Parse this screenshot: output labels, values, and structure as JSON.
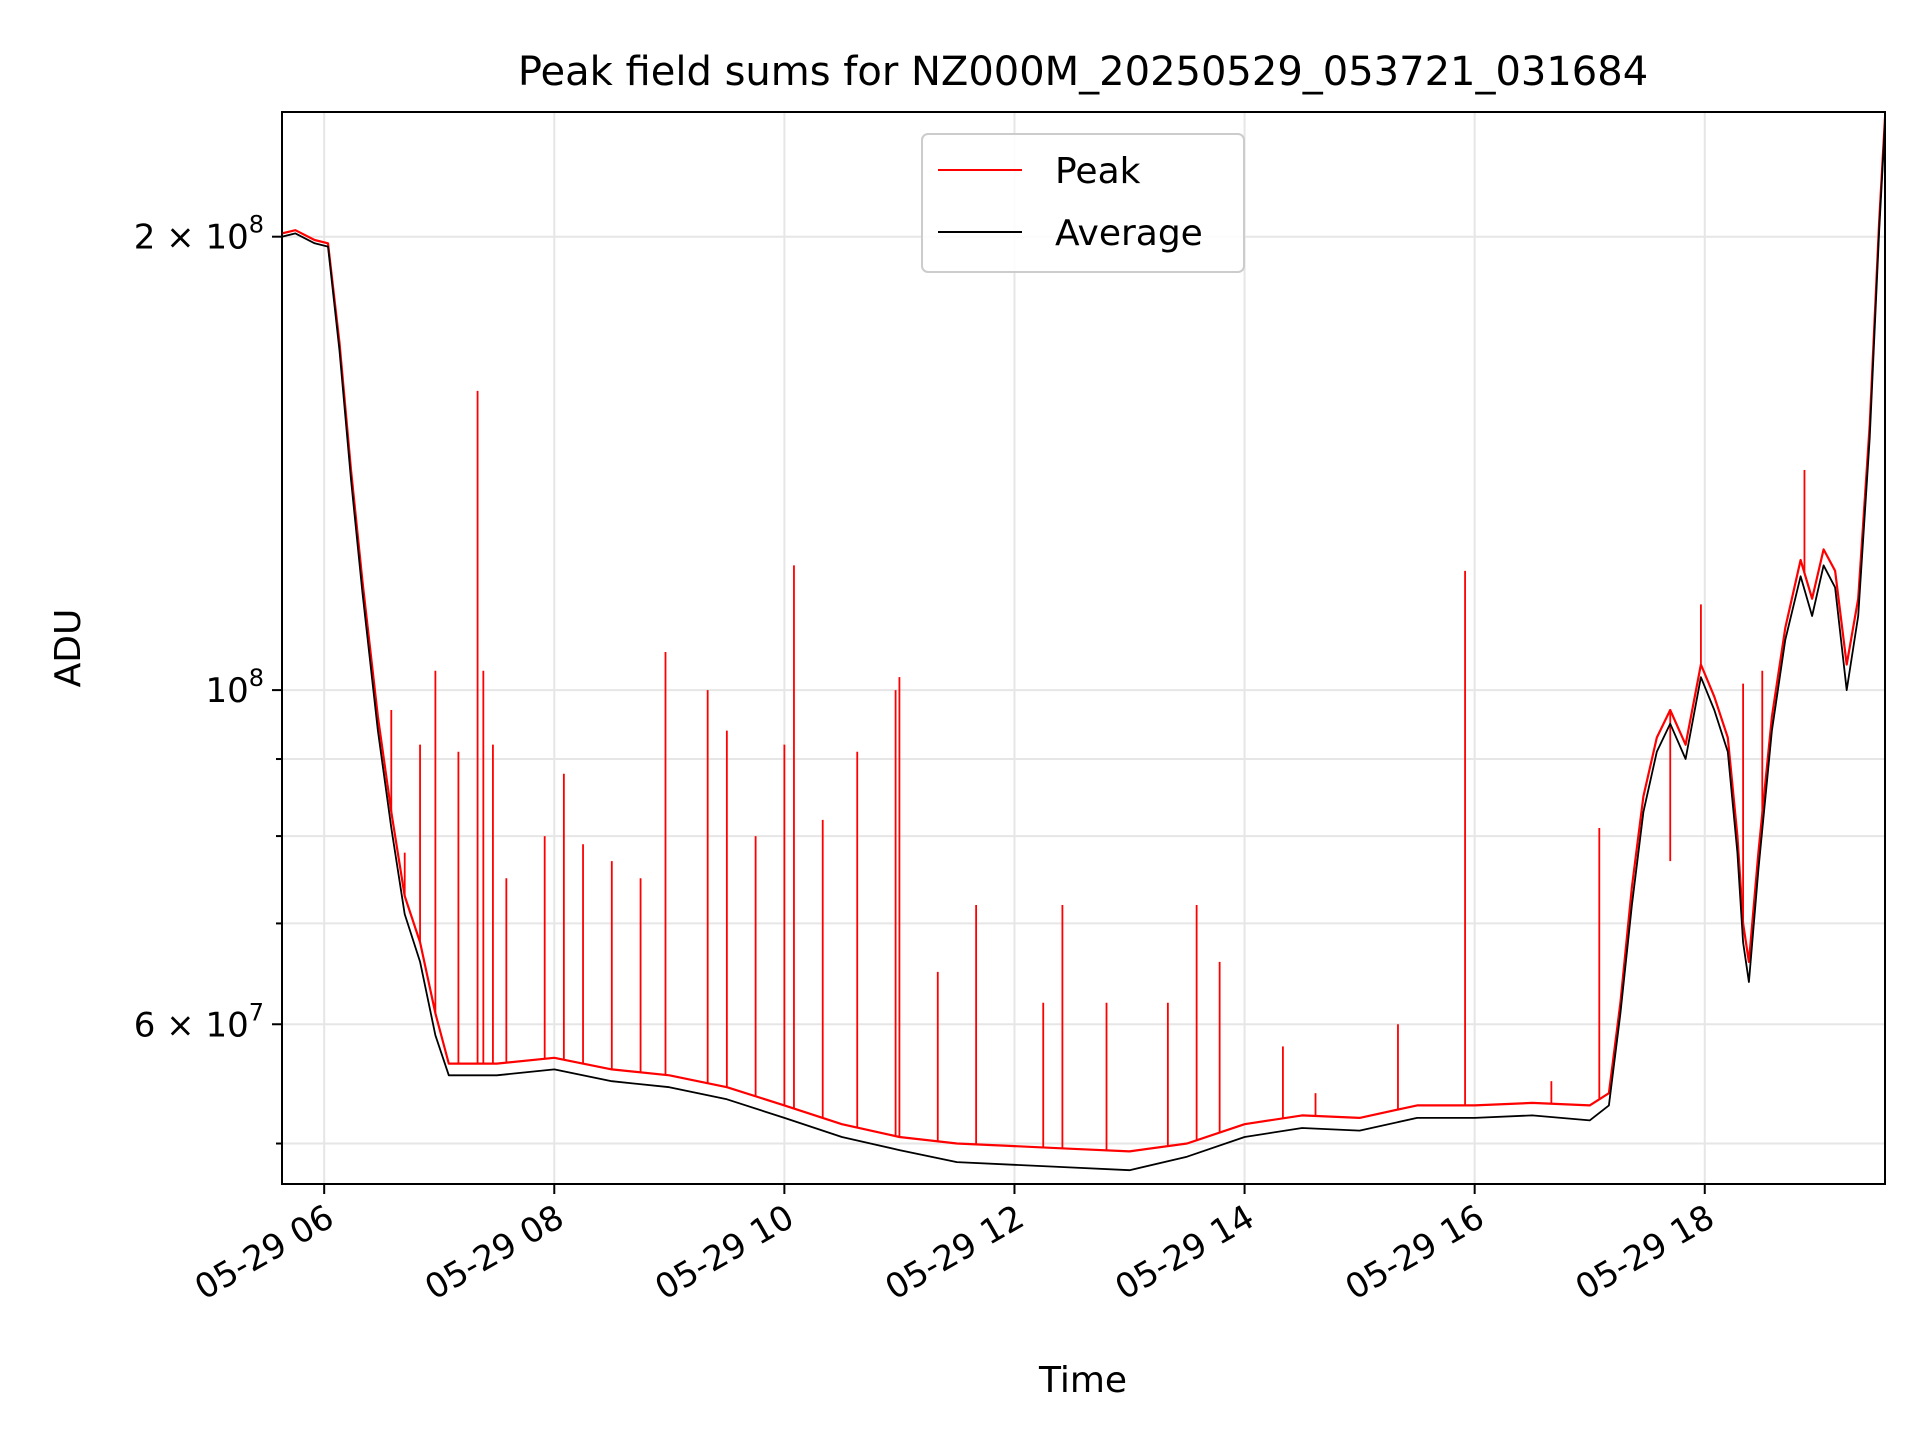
{
  "chart_data": {
    "type": "line",
    "title": "Peak field sums for NZ000M_20250529_053721_031684",
    "xlabel": "Time",
    "ylabel": "ADU",
    "yscale": "log",
    "xlim": [
      "2025-05-29 05:38",
      "2025-05-29 19:34"
    ],
    "ylim": [
      47000000,
      242000000
    ],
    "grid": true,
    "legend_position": "top-center",
    "x_ticks": [
      {
        "x": "2025-05-29 06:00",
        "label": "05-29 06"
      },
      {
        "x": "2025-05-29 08:00",
        "label": "05-29 08"
      },
      {
        "x": "2025-05-29 10:00",
        "label": "05-29 10"
      },
      {
        "x": "2025-05-29 12:00",
        "label": "05-29 12"
      },
      {
        "x": "2025-05-29 14:00",
        "label": "05-29 14"
      },
      {
        "x": "2025-05-29 16:00",
        "label": "05-29 16"
      },
      {
        "x": "2025-05-29 18:00",
        "label": "05-29 18"
      }
    ],
    "y_ticks": [
      {
        "y": 200000000,
        "base": "2 × 10",
        "exp": "8"
      },
      {
        "y": 100000000,
        "base": "10",
        "exp": "8"
      },
      {
        "y": 60000000,
        "base": "6 × 10",
        "exp": "7"
      }
    ],
    "y_minor_ticks": [
      50000000,
      70000000,
      80000000,
      90000000
    ],
    "series": [
      {
        "name": "Peak",
        "color": "#ff0000",
        "points": [
          [
            "2025-05-29 05:38",
            201000000
          ],
          [
            "2025-05-29 05:45",
            202000000
          ],
          [
            "2025-05-29 05:55",
            199000000
          ],
          [
            "2025-05-29 06:02",
            198000000
          ],
          [
            "2025-05-29 06:08",
            170000000
          ],
          [
            "2025-05-29 06:14",
            140000000
          ],
          [
            "2025-05-29 06:20",
            118000000
          ],
          [
            "2025-05-29 06:28",
            96000000
          ],
          [
            "2025-05-29 06:35",
            83000000
          ],
          [
            "2025-05-29 06:42",
            73000000
          ],
          [
            "2025-05-29 06:50",
            68000000
          ],
          [
            "2025-05-29 06:58",
            61000000
          ],
          [
            "2025-05-29 07:05",
            56500000
          ],
          [
            "2025-05-29 07:30",
            56500000
          ],
          [
            "2025-05-29 08:00",
            57000000
          ],
          [
            "2025-05-29 08:30",
            56000000
          ],
          [
            "2025-05-29 09:00",
            55500000
          ],
          [
            "2025-05-29 09:30",
            54500000
          ],
          [
            "2025-05-29 10:00",
            53000000
          ],
          [
            "2025-05-29 10:30",
            51500000
          ],
          [
            "2025-05-29 11:00",
            50500000
          ],
          [
            "2025-05-29 11:30",
            50000000
          ],
          [
            "2025-05-29 12:00",
            49800000
          ],
          [
            "2025-05-29 12:30",
            49600000
          ],
          [
            "2025-05-29 13:00",
            49400000
          ],
          [
            "2025-05-29 13:30",
            50000000
          ],
          [
            "2025-05-29 14:00",
            51500000
          ],
          [
            "2025-05-29 14:30",
            52200000
          ],
          [
            "2025-05-29 15:00",
            52000000
          ],
          [
            "2025-05-29 15:30",
            53000000
          ],
          [
            "2025-05-29 16:00",
            53000000
          ],
          [
            "2025-05-29 16:30",
            53200000
          ],
          [
            "2025-05-29 17:00",
            53000000
          ],
          [
            "2025-05-29 17:10",
            54000000
          ],
          [
            "2025-05-29 17:16",
            62000000
          ],
          [
            "2025-05-29 17:22",
            74000000
          ],
          [
            "2025-05-29 17:28",
            85000000
          ],
          [
            "2025-05-29 17:35",
            93000000
          ],
          [
            "2025-05-29 17:42",
            97000000
          ],
          [
            "2025-05-29 17:50",
            92000000
          ],
          [
            "2025-05-29 17:58",
            104000000
          ],
          [
            "2025-05-29 18:05",
            99000000
          ],
          [
            "2025-05-29 18:12",
            93000000
          ],
          [
            "2025-05-29 18:17",
            80000000
          ],
          [
            "2025-05-29 18:20",
            70000000
          ],
          [
            "2025-05-29 18:23",
            66000000
          ],
          [
            "2025-05-29 18:28",
            78000000
          ],
          [
            "2025-05-29 18:35",
            96000000
          ],
          [
            "2025-05-29 18:42",
            110000000
          ],
          [
            "2025-05-29 18:50",
            122000000
          ],
          [
            "2025-05-29 18:56",
            115000000
          ],
          [
            "2025-05-29 19:02",
            124000000
          ],
          [
            "2025-05-29 19:08",
            120000000
          ],
          [
            "2025-05-29 19:14",
            104000000
          ],
          [
            "2025-05-29 19:20",
            115000000
          ],
          [
            "2025-05-29 19:26",
            150000000
          ],
          [
            "2025-05-29 19:31",
            205000000
          ],
          [
            "2025-05-29 19:34",
            240000000
          ]
        ],
        "spikes": [
          [
            "2025-05-29 06:35",
            97000000
          ],
          [
            "2025-05-29 06:42",
            78000000
          ],
          [
            "2025-05-29 06:50",
            92000000
          ],
          [
            "2025-05-29 06:58",
            103000000
          ],
          [
            "2025-05-29 07:10",
            91000000
          ],
          [
            "2025-05-29 07:20",
            158000000
          ],
          [
            "2025-05-29 07:23",
            103000000
          ],
          [
            "2025-05-29 07:28",
            92000000
          ],
          [
            "2025-05-29 07:35",
            75000000
          ],
          [
            "2025-05-29 07:55",
            80000000
          ],
          [
            "2025-05-29 08:05",
            88000000
          ],
          [
            "2025-05-29 08:15",
            79000000
          ],
          [
            "2025-05-29 08:30",
            77000000
          ],
          [
            "2025-05-29 08:45",
            75000000
          ],
          [
            "2025-05-29 08:58",
            106000000
          ],
          [
            "2025-05-29 09:20",
            100000000
          ],
          [
            "2025-05-29 09:30",
            94000000
          ],
          [
            "2025-05-29 09:45",
            80000000
          ],
          [
            "2025-05-29 10:00",
            92000000
          ],
          [
            "2025-05-29 10:05",
            121000000
          ],
          [
            "2025-05-29 10:20",
            82000000
          ],
          [
            "2025-05-29 10:38",
            91000000
          ],
          [
            "2025-05-29 10:58",
            100000000
          ],
          [
            "2025-05-29 11:00",
            102000000
          ],
          [
            "2025-05-29 11:20",
            65000000
          ],
          [
            "2025-05-29 11:40",
            72000000
          ],
          [
            "2025-05-29 12:15",
            62000000
          ],
          [
            "2025-05-29 12:25",
            72000000
          ],
          [
            "2025-05-29 12:48",
            62000000
          ],
          [
            "2025-05-29 13:20",
            62000000
          ],
          [
            "2025-05-29 13:35",
            72000000
          ],
          [
            "2025-05-29 13:47",
            66000000
          ],
          [
            "2025-05-29 14:20",
            58000000
          ],
          [
            "2025-05-29 14:37",
            54000000
          ],
          [
            "2025-05-29 15:20",
            60000000
          ],
          [
            "2025-05-29 15:55",
            120000000
          ],
          [
            "2025-05-29 16:40",
            55000000
          ],
          [
            "2025-05-29 17:05",
            81000000
          ],
          [
            "2025-05-29 17:42",
            77000000
          ],
          [
            "2025-05-29 17:58",
            114000000
          ],
          [
            "2025-05-29 18:20",
            101000000
          ],
          [
            "2025-05-29 18:30",
            103000000
          ],
          [
            "2025-05-29 18:52",
            140000000
          ]
        ]
      },
      {
        "name": "Average",
        "color": "#000000",
        "points": [
          [
            "2025-05-29 05:38",
            200000000
          ],
          [
            "2025-05-29 05:45",
            201000000
          ],
          [
            "2025-05-29 05:55",
            198000000
          ],
          [
            "2025-05-29 06:02",
            197000000
          ],
          [
            "2025-05-29 06:08",
            168000000
          ],
          [
            "2025-05-29 06:14",
            138000000
          ],
          [
            "2025-05-29 06:20",
            116000000
          ],
          [
            "2025-05-29 06:28",
            94000000
          ],
          [
            "2025-05-29 06:35",
            81000000
          ],
          [
            "2025-05-29 06:42",
            71000000
          ],
          [
            "2025-05-29 06:50",
            66000000
          ],
          [
            "2025-05-29 06:58",
            59000000
          ],
          [
            "2025-05-29 07:05",
            55500000
          ],
          [
            "2025-05-29 07:30",
            55500000
          ],
          [
            "2025-05-29 08:00",
            56000000
          ],
          [
            "2025-05-29 08:30",
            55000000
          ],
          [
            "2025-05-29 09:00",
            54500000
          ],
          [
            "2025-05-29 09:30",
            53500000
          ],
          [
            "2025-05-29 10:00",
            52000000
          ],
          [
            "2025-05-29 10:30",
            50500000
          ],
          [
            "2025-05-29 11:00",
            49500000
          ],
          [
            "2025-05-29 11:30",
            48600000
          ],
          [
            "2025-05-29 12:00",
            48400000
          ],
          [
            "2025-05-29 12:30",
            48200000
          ],
          [
            "2025-05-29 13:00",
            48000000
          ],
          [
            "2025-05-29 13:30",
            49000000
          ],
          [
            "2025-05-29 14:00",
            50500000
          ],
          [
            "2025-05-29 14:30",
            51200000
          ],
          [
            "2025-05-29 15:00",
            51000000
          ],
          [
            "2025-05-29 15:30",
            52000000
          ],
          [
            "2025-05-29 16:00",
            52000000
          ],
          [
            "2025-05-29 16:30",
            52200000
          ],
          [
            "2025-05-29 17:00",
            51800000
          ],
          [
            "2025-05-29 17:10",
            53000000
          ],
          [
            "2025-05-29 17:16",
            61000000
          ],
          [
            "2025-05-29 17:22",
            72000000
          ],
          [
            "2025-05-29 17:28",
            83000000
          ],
          [
            "2025-05-29 17:35",
            91000000
          ],
          [
            "2025-05-29 17:42",
            95000000
          ],
          [
            "2025-05-29 17:50",
            90000000
          ],
          [
            "2025-05-29 17:58",
            102000000
          ],
          [
            "2025-05-29 18:05",
            97000000
          ],
          [
            "2025-05-29 18:12",
            91000000
          ],
          [
            "2025-05-29 18:17",
            78000000
          ],
          [
            "2025-05-29 18:20",
            68000000
          ],
          [
            "2025-05-29 18:23",
            64000000
          ],
          [
            "2025-05-29 18:28",
            76000000
          ],
          [
            "2025-05-29 18:35",
            94000000
          ],
          [
            "2025-05-29 18:42",
            108000000
          ],
          [
            "2025-05-29 18:50",
            119000000
          ],
          [
            "2025-05-29 18:56",
            112000000
          ],
          [
            "2025-05-29 19:02",
            121000000
          ],
          [
            "2025-05-29 19:08",
            117000000
          ],
          [
            "2025-05-29 19:14",
            100000000
          ],
          [
            "2025-05-29 19:20",
            112000000
          ],
          [
            "2025-05-29 19:26",
            147000000
          ],
          [
            "2025-05-29 19:31",
            202000000
          ],
          [
            "2025-05-29 19:34",
            238000000
          ]
        ]
      }
    ]
  }
}
